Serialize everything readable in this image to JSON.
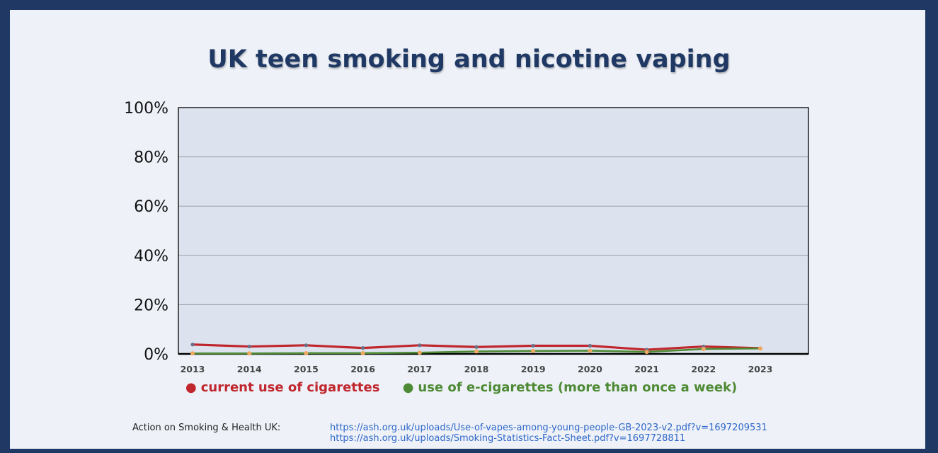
{
  "chart_data": {
    "type": "line",
    "title": "UK teen smoking and nicotine vaping",
    "categories": [
      "2013",
      "2014",
      "2015",
      "2016",
      "2017",
      "2018",
      "2019",
      "2020",
      "2021",
      "2022",
      "2023"
    ],
    "y_ticks": [
      "0%",
      "20%",
      "40%",
      "60%",
      "80%",
      "100%"
    ],
    "ylim": [
      0,
      100
    ],
    "grid": true,
    "legend_position": "bottom",
    "series": [
      {
        "name": "current use of cigarettes",
        "color": "#c0262d",
        "values": [
          3.8,
          3.0,
          3.5,
          2.4,
          3.5,
          2.8,
          3.3,
          3.3,
          1.7,
          3.0,
          2.3
        ]
      },
      {
        "name": "use of e-cigarettes (more than once a week)",
        "color": "#4e8a35",
        "values": [
          0.2,
          0.2,
          0.3,
          0.3,
          0.5,
          1.0,
          1.2,
          1.3,
          0.8,
          2.0,
          2.2
        ]
      }
    ],
    "secondary_markers": {
      "color": "#f0a860",
      "values": [
        0.2,
        0.2,
        0.3,
        0.3,
        0.5,
        1.0,
        1.2,
        1.3,
        0.8,
        2.0,
        2.2
      ]
    },
    "plot_color": "#dde3ee",
    "axis_color": "#000000"
  },
  "footer": {
    "source_label": "Action on Smoking & Health UK:",
    "link1": "https://ash.org.uk/uploads/Use-of-vapes-among-young-people-GB-2023-v2.pdf?v=1697209531",
    "link2": "https://ash.org.uk/uploads/Smoking-Statistics-Fact-Sheet.pdf?v=1697728811"
  }
}
